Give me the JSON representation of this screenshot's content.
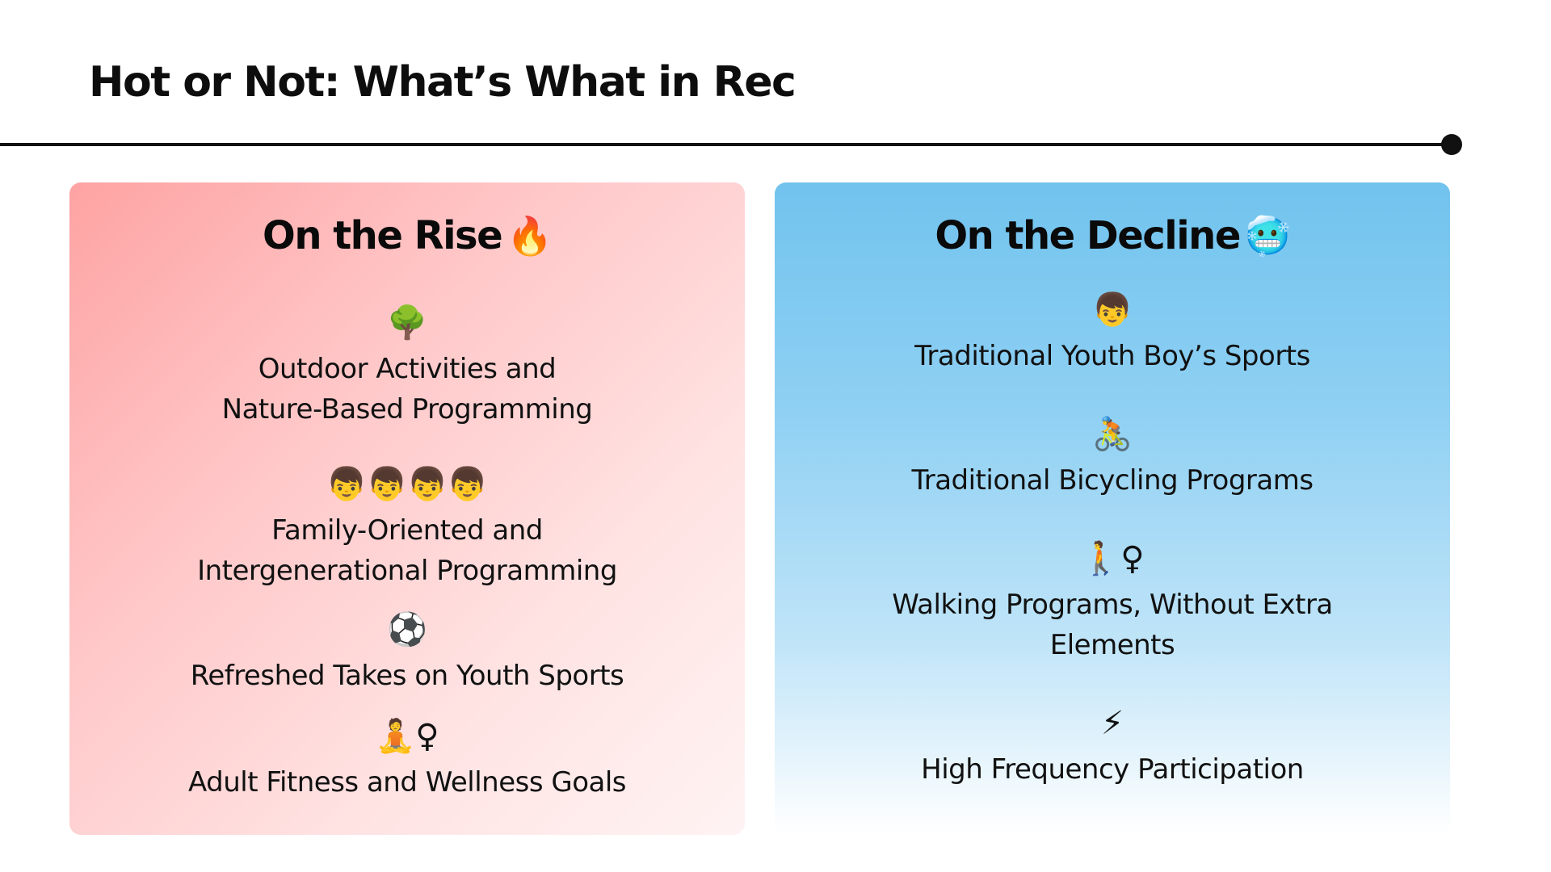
{
  "slide": {
    "title": "Hot or Not: What’s What in Rec"
  },
  "rise": {
    "heading": "On the Rise",
    "heading_icon": "🔥",
    "items": [
      {
        "icon": "🌳",
        "icon_name": "tree-icon",
        "label": "Outdoor Activities and\nNature-Based Programming"
      },
      {
        "icon": "👦👦👦👦",
        "icon_name": "family-faces-icon",
        "label": "Family-Oriented and\nIntergenerational Programming"
      },
      {
        "icon": "⚽",
        "icon_name": "soccer-ball-icon",
        "label": "Refreshed Takes on Youth Sports"
      },
      {
        "icon": "🧘♀",
        "icon_name": "meditation-female-icon",
        "label": "Adult Fitness and Wellness Goals"
      }
    ]
  },
  "decline": {
    "heading": "On the Decline",
    "heading_icon": "🥶",
    "items": [
      {
        "icon": "👦",
        "icon_name": "boy-face-icon",
        "label": "Traditional Youth Boy’s Sports"
      },
      {
        "icon": "🚴",
        "icon_name": "cyclist-icon",
        "label": "Traditional Bicycling Programs"
      },
      {
        "icon": "🚶♀",
        "icon_name": "walking-female-icon",
        "label": "Walking Programs, Without Extra\nElements"
      },
      {
        "icon": "⚡",
        "icon_name": "lightning-icon",
        "label": "High Frequency Participation"
      }
    ]
  },
  "colors": {
    "rise_panel": "#fea3a3",
    "decline_panel": "#71c3ee",
    "rule": "#111111"
  }
}
